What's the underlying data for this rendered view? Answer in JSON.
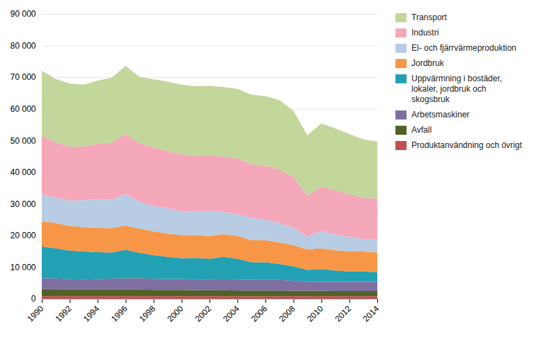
{
  "chart_data": {
    "type": "area",
    "stacked": true,
    "grid": true,
    "legend": "right",
    "x": [
      1990,
      1991,
      1992,
      1993,
      1994,
      1995,
      1996,
      1997,
      1998,
      1999,
      2000,
      2001,
      2002,
      2003,
      2004,
      2005,
      2006,
      2007,
      2008,
      2009,
      2010,
      2011,
      2012,
      2013,
      2014
    ],
    "xlim": [
      1990,
      2014
    ],
    "xticks": [
      1990,
      1992,
      1994,
      1996,
      1998,
      2000,
      2002,
      2004,
      2006,
      2008,
      2010,
      2012,
      2014
    ],
    "ylim": [
      0,
      90000
    ],
    "yticks": [
      0,
      {
        "value": 10000,
        "label": "10 000"
      },
      {
        "value": 20000,
        "label": "20 000"
      },
      {
        "value": 30000,
        "label": "30 000"
      },
      {
        "value": 40000,
        "label": "40 000"
      },
      {
        "value": 50000,
        "label": "50 000"
      },
      {
        "value": 60000,
        "label": "60 000"
      },
      {
        "value": 70000,
        "label": "70 000"
      },
      {
        "value": 80000,
        "label": "80 000"
      },
      {
        "value": 90000,
        "label": "90 000"
      }
    ],
    "series": [
      {
        "name": "Produktanvändning och övrigt",
        "color": "#c0504d",
        "values": [
          800,
          800,
          800,
          800,
          800,
          800,
          800,
          800,
          800,
          800,
          800,
          800,
          800,
          800,
          800,
          800,
          800,
          800,
          800,
          800,
          800,
          800,
          800,
          800,
          800
        ]
      },
      {
        "name": "Avfall",
        "color": "#4f6228",
        "values": [
          2200,
          2200,
          2100,
          2100,
          2100,
          2100,
          2100,
          2100,
          2000,
          2000,
          2000,
          1900,
          1900,
          1900,
          1800,
          1800,
          1800,
          1800,
          1700,
          1700,
          1700,
          1600,
          1600,
          1600,
          1600
        ]
      },
      {
        "name": "Arbetsmaskiner",
        "color": "#7f6fa0",
        "values": [
          3500,
          3400,
          3300,
          3200,
          3300,
          3500,
          3600,
          3600,
          3500,
          3400,
          3500,
          3400,
          3400,
          3500,
          3500,
          3400,
          3400,
          3400,
          3200,
          2800,
          2900,
          3000,
          3000,
          3000,
          3000
        ]
      },
      {
        "name": "Uppvärmning i bostäder,\nlokaler, jordbruk och\nskogsbruk",
        "color": "#22a0b4",
        "values": [
          10000,
          9500,
          9000,
          8800,
          8500,
          8200,
          9000,
          8000,
          7500,
          7000,
          6500,
          6800,
          6500,
          7000,
          6500,
          5500,
          5500,
          5000,
          4500,
          3800,
          4000,
          3500,
          3200,
          3200,
          3000
        ]
      },
      {
        "name": "Jordbruk",
        "color": "#f79646",
        "values": [
          8000,
          8000,
          7800,
          7700,
          7700,
          7700,
          7600,
          7600,
          7500,
          7400,
          7300,
          7200,
          7200,
          7200,
          7200,
          7000,
          7000,
          6800,
          6700,
          6500,
          6500,
          6400,
          6400,
          6300,
          6200
        ]
      },
      {
        "name": "El- och fjärrvärmeproduktion",
        "color": "#b8cce4",
        "values": [
          8500,
          8000,
          8000,
          8500,
          9000,
          9000,
          10000,
          8500,
          8000,
          8000,
          7500,
          7500,
          8000,
          7000,
          7000,
          7000,
          6500,
          6000,
          5500,
          4000,
          5500,
          5000,
          4500,
          4000,
          4000
        ]
      },
      {
        "name": "Industri",
        "color": "#f4a7b9",
        "values": [
          18500,
          17500,
          17000,
          17000,
          17500,
          18000,
          19000,
          18500,
          18500,
          18000,
          18000,
          17500,
          17500,
          17500,
          17500,
          17000,
          17000,
          17000,
          16000,
          13000,
          14000,
          14000,
          13500,
          13000,
          13000
        ]
      },
      {
        "name": "Transport",
        "color": "#c3d69b",
        "values": [
          20500,
          20000,
          20000,
          19500,
          20000,
          20500,
          21500,
          21000,
          21500,
          22000,
          22000,
          22000,
          22000,
          22000,
          22000,
          22000,
          22000,
          22000,
          21000,
          19000,
          20000,
          19500,
          19000,
          18500,
          18000
        ]
      }
    ]
  }
}
